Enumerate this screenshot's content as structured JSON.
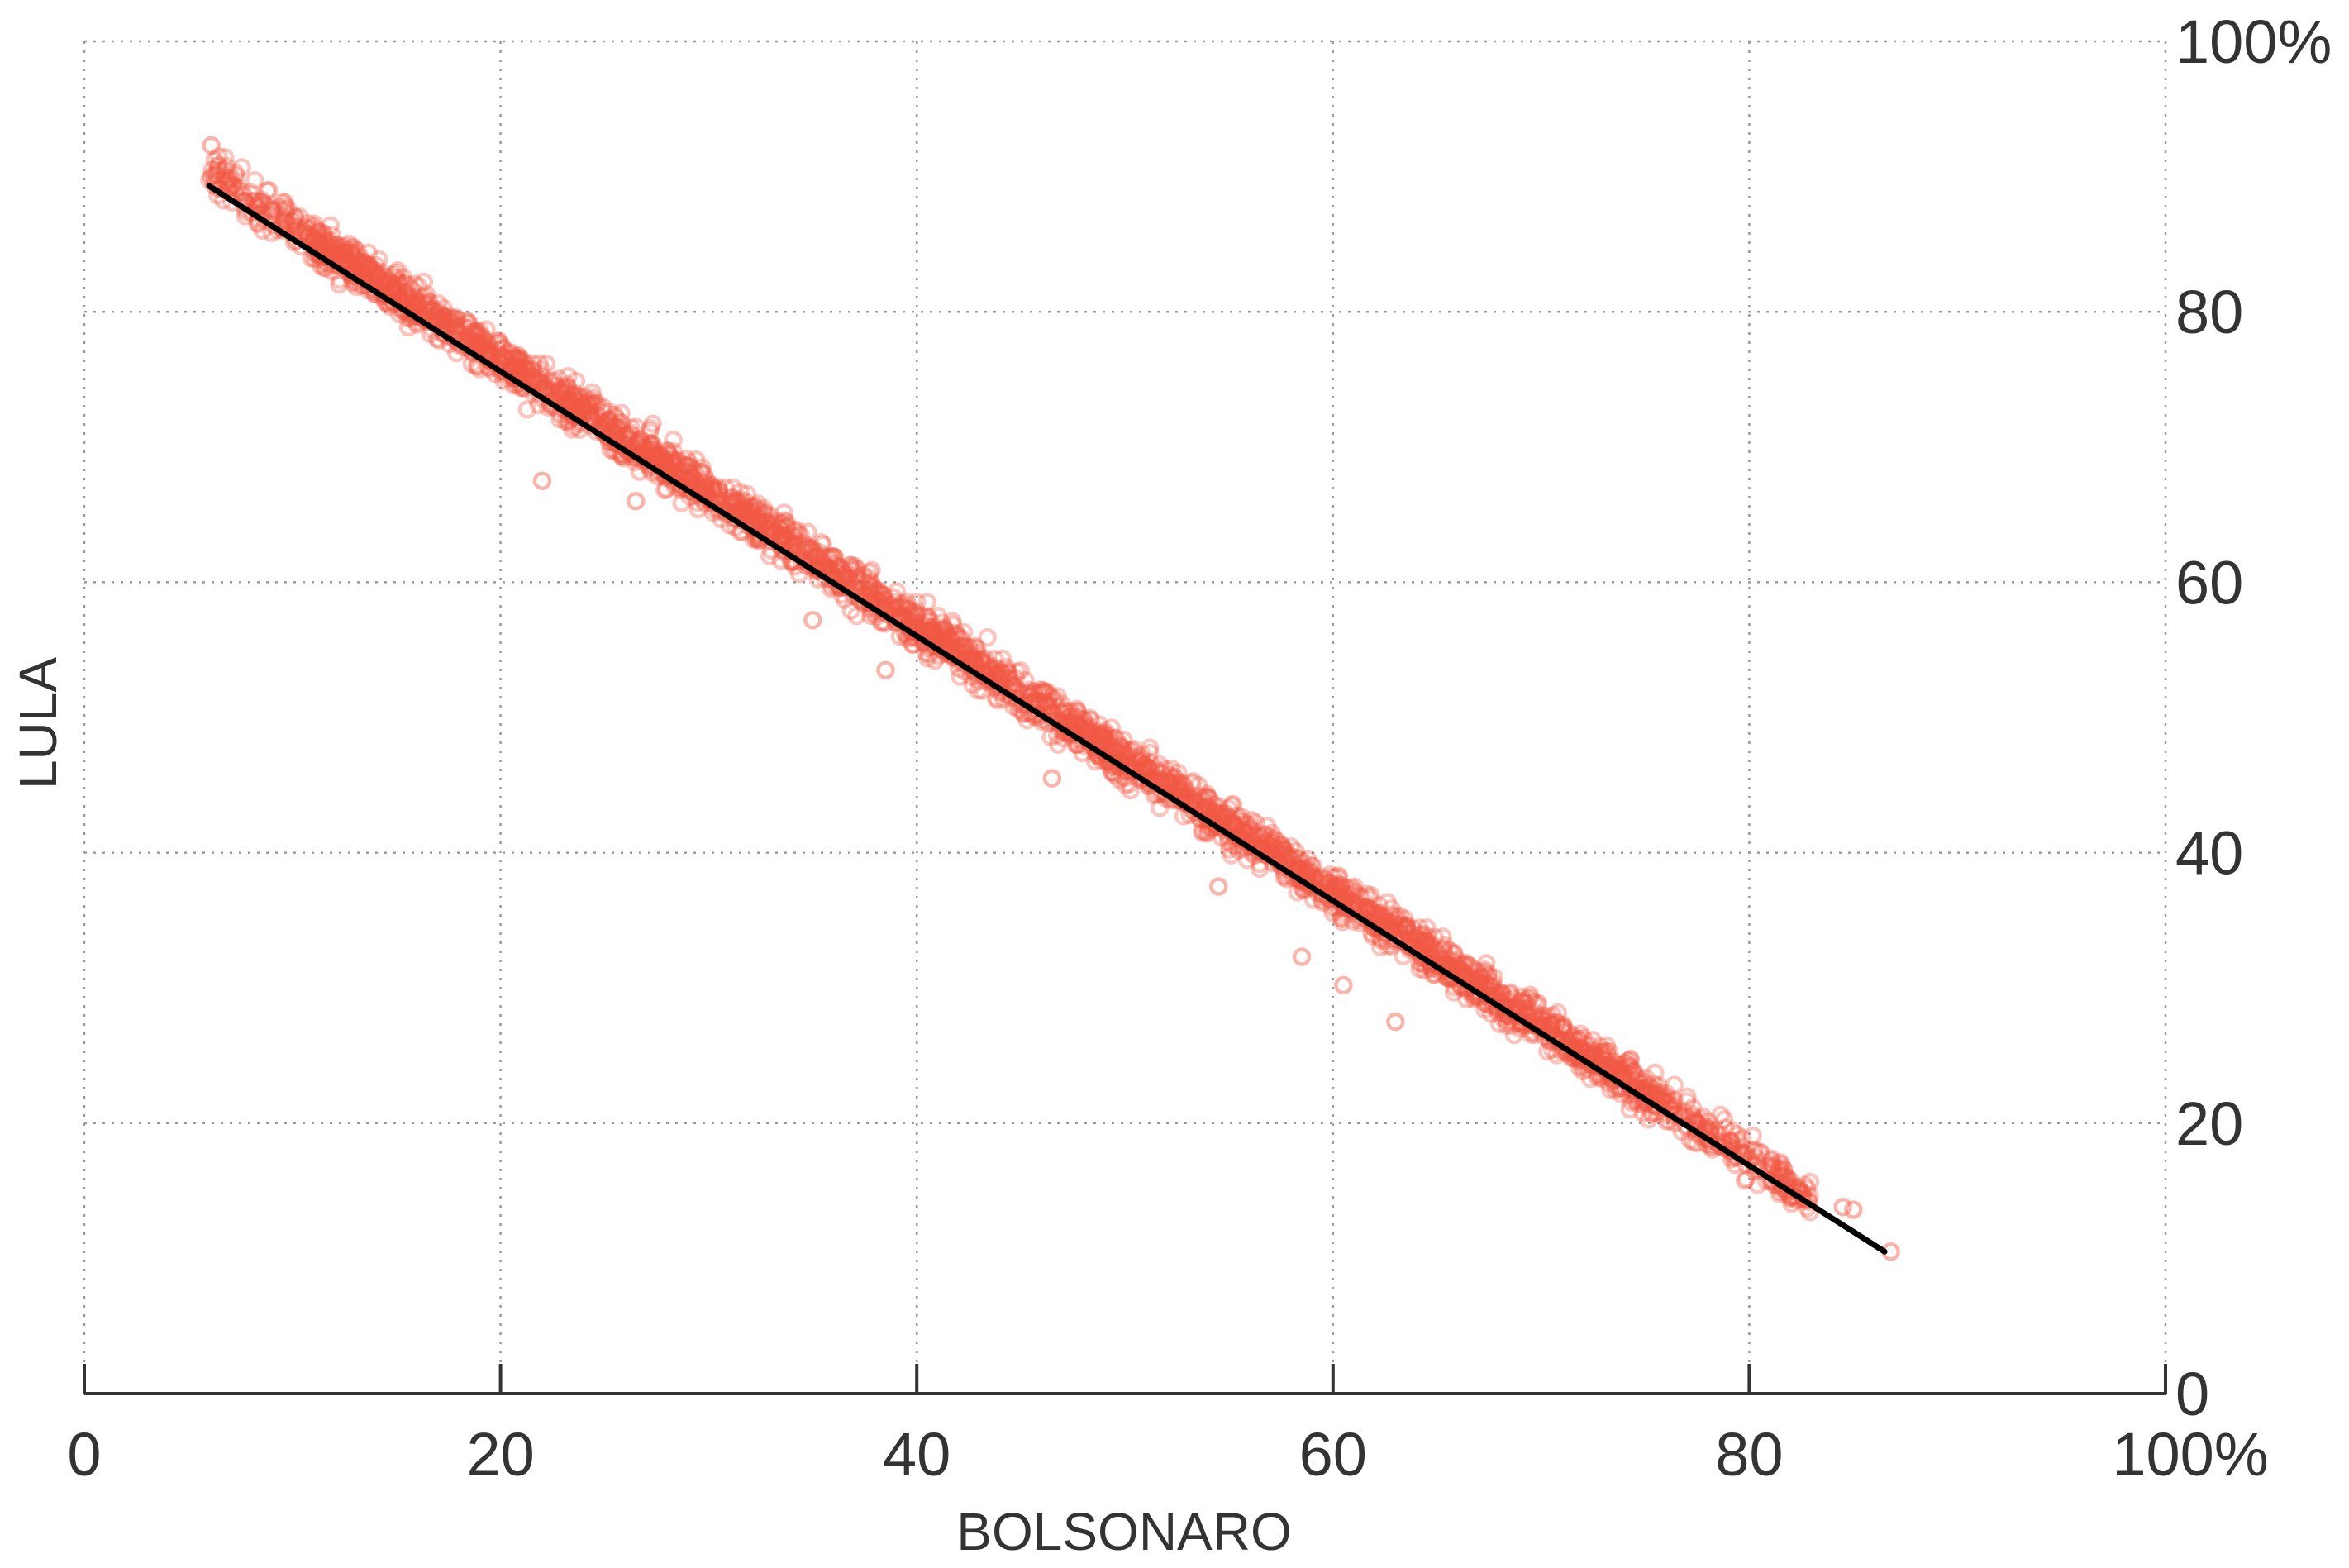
{
  "chart_data": {
    "type": "scatter",
    "xlabel": "BOLSONARO",
    "ylabel": "LULA",
    "xlim": [
      0,
      100
    ],
    "ylim": [
      0,
      100
    ],
    "x_ticks": [
      "0",
      "20",
      "40",
      "60",
      "80",
      "100%"
    ],
    "y_ticks": [
      "0",
      "20",
      "40",
      "60",
      "80",
      "100%"
    ],
    "x_tick_values": [
      0,
      20,
      40,
      60,
      80,
      100
    ],
    "y_tick_values": [
      0,
      20,
      40,
      60,
      80,
      100
    ],
    "grid": true,
    "grid_style": "dotted",
    "y_axis_side": "right",
    "series": [
      {
        "kind": "points",
        "color": "#f05a46",
        "marker": "open-circle",
        "opacity": 0.35,
        "trend": {
          "slope": -0.985,
          "intercept": 96.2
        },
        "x_range": [
          6,
          87
        ],
        "outliers": [
          {
            "x": 6.1,
            "y": 92.3
          },
          {
            "x": 9.5,
            "y": 86.2
          },
          {
            "x": 22.0,
            "y": 67.5
          },
          {
            "x": 26.5,
            "y": 66.0
          },
          {
            "x": 35.0,
            "y": 57.2
          },
          {
            "x": 38.5,
            "y": 53.5
          },
          {
            "x": 46.5,
            "y": 45.5
          },
          {
            "x": 54.5,
            "y": 37.5
          },
          {
            "x": 58.5,
            "y": 32.3
          },
          {
            "x": 60.5,
            "y": 30.2
          },
          {
            "x": 63.0,
            "y": 27.5
          },
          {
            "x": 82.0,
            "y": 14.5
          },
          {
            "x": 84.5,
            "y": 13.8
          },
          {
            "x": 85.0,
            "y": 13.6
          },
          {
            "x": 86.8,
            "y": 10.5
          }
        ]
      },
      {
        "kind": "regression-line",
        "color": "#000000",
        "x": [
          6.0,
          86.5
        ],
        "y": [
          89.3,
          10.5
        ]
      }
    ]
  }
}
